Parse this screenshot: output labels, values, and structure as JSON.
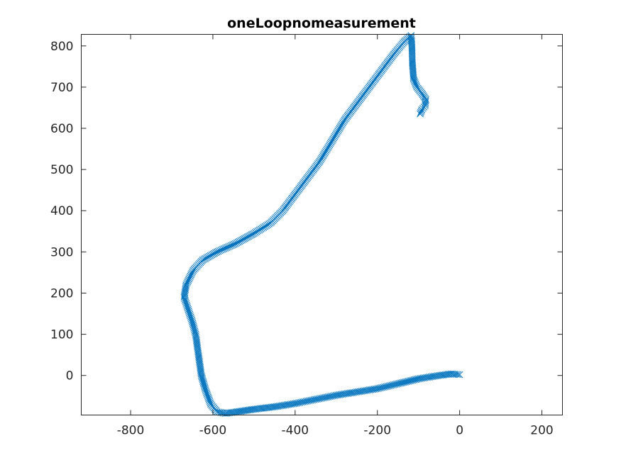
{
  "chart_data": {
    "type": "scatter",
    "title": "oneLoopnomeasurement",
    "xlabel": "",
    "ylabel": "",
    "xlim": [
      -920,
      250
    ],
    "ylim": [
      -96,
      828
    ],
    "xticks": [
      -800,
      -600,
      -400,
      -200,
      0,
      200
    ],
    "xtick_labels": [
      "-800",
      "-600",
      "-400",
      "-200",
      "0",
      "200"
    ],
    "yticks": [
      0,
      100,
      200,
      300,
      400,
      500,
      600,
      700,
      800
    ],
    "ytick_labels": [
      "0",
      "100",
      "200",
      "300",
      "400",
      "500",
      "600",
      "700",
      "800"
    ],
    "grid": false,
    "marker": "x",
    "series_color": "#0072BD",
    "series": [
      {
        "path": [
          [
            0,
            2
          ],
          [
            -20,
            4
          ],
          [
            -50,
            0
          ],
          [
            -100,
            -8
          ],
          [
            -150,
            -20
          ],
          [
            -200,
            -32
          ],
          [
            -250,
            -40
          ],
          [
            -300,
            -48
          ],
          [
            -350,
            -58
          ],
          [
            -400,
            -68
          ],
          [
            -450,
            -76
          ],
          [
            -500,
            -82
          ],
          [
            -540,
            -88
          ],
          [
            -570,
            -92
          ],
          [
            -590,
            -88
          ],
          [
            -605,
            -70
          ],
          [
            -618,
            -35
          ],
          [
            -628,
            0
          ],
          [
            -635,
            50
          ],
          [
            -642,
            100
          ],
          [
            -650,
            130
          ],
          [
            -660,
            160
          ],
          [
            -670,
            190
          ],
          [
            -665,
            220
          ],
          [
            -648,
            255
          ],
          [
            -625,
            280
          ],
          [
            -590,
            300
          ],
          [
            -545,
            320
          ],
          [
            -500,
            345
          ],
          [
            -460,
            370
          ],
          [
            -430,
            400
          ],
          [
            -400,
            440
          ],
          [
            -370,
            480
          ],
          [
            -340,
            520
          ],
          [
            -310,
            570
          ],
          [
            -280,
            620
          ],
          [
            -250,
            660
          ],
          [
            -220,
            700
          ],
          [
            -190,
            740
          ],
          [
            -160,
            780
          ],
          [
            -135,
            810
          ],
          [
            -118,
            825
          ],
          [
            -116,
            800
          ],
          [
            -115,
            760
          ],
          [
            -112,
            720
          ],
          [
            -104,
            700
          ],
          [
            -92,
            685
          ],
          [
            -82,
            670
          ],
          [
            -84,
            655
          ],
          [
            -92,
            645
          ],
          [
            -96,
            635
          ]
        ]
      }
    ]
  }
}
